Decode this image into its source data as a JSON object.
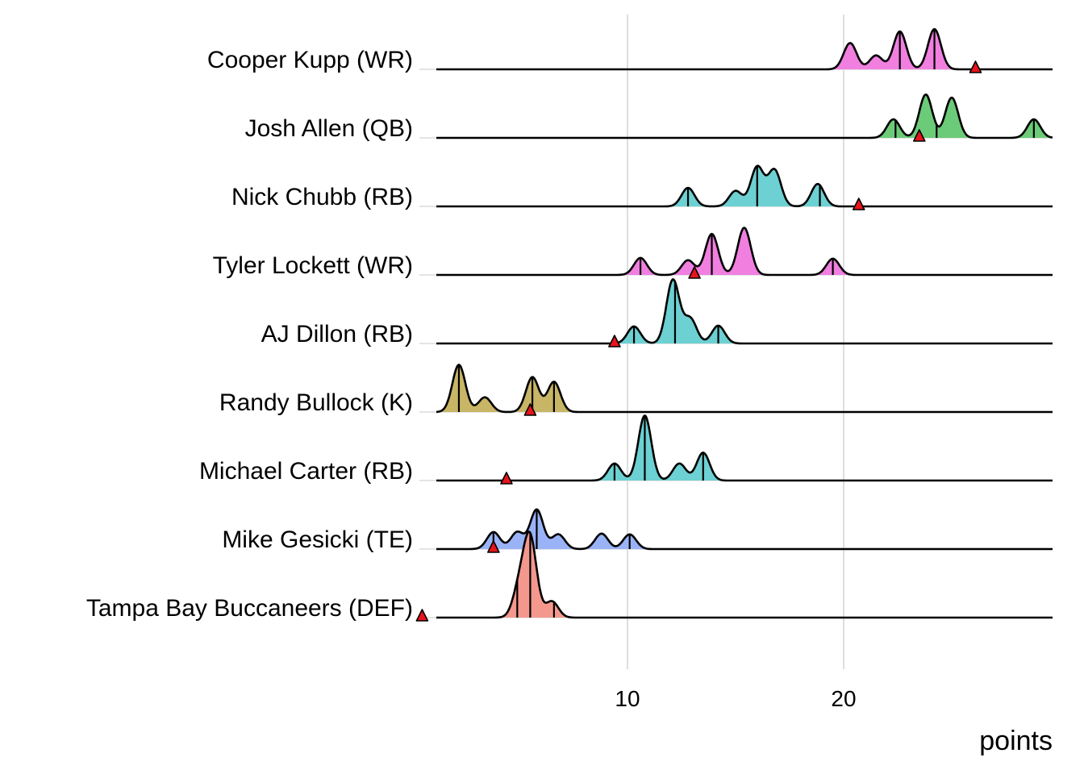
{
  "chart_data": {
    "type": "ridgeline",
    "xlabel": "points",
    "ylabel": "",
    "xlim": [
      0.5,
      29.5
    ],
    "x_ticks": [
      {
        "value": 10,
        "label": "10"
      },
      {
        "value": 20,
        "label": "20"
      }
    ],
    "grid": "vertical major lines",
    "legend": "none",
    "series": [
      {
        "name": "Cooper Kupp (WR)",
        "color": "#F07FE0",
        "peaks": [
          [
            20.3,
            0.34
          ],
          [
            21.5,
            0.18
          ],
          [
            22.6,
            0.49
          ],
          [
            24.2,
            0.52
          ]
        ],
        "quantiles": [
          22.6,
          24.2
        ],
        "marker": 26.1
      },
      {
        "name": "Josh Allen (QB)",
        "color": "#6CCB78",
        "peaks": [
          [
            22.3,
            0.24
          ],
          [
            23.8,
            0.56
          ],
          [
            25.0,
            0.52
          ],
          [
            28.8,
            0.24
          ]
        ],
        "quantiles": [
          22.4,
          24.3,
          28.8
        ],
        "marker": 23.5
      },
      {
        "name": "Nick Chubb (RB)",
        "color": "#6DD0D2",
        "peaks": [
          [
            12.8,
            0.24
          ],
          [
            15.0,
            0.2
          ],
          [
            16.0,
            0.51
          ],
          [
            16.8,
            0.47
          ],
          [
            18.8,
            0.29
          ]
        ],
        "quantiles": [
          12.8,
          16.0,
          18.9
        ],
        "marker": 20.7
      },
      {
        "name": "Tyler Lockett (WR)",
        "color": "#F07FE0",
        "peaks": [
          [
            10.6,
            0.22
          ],
          [
            12.8,
            0.19
          ],
          [
            13.9,
            0.53
          ],
          [
            15.4,
            0.61
          ],
          [
            19.5,
            0.21
          ]
        ],
        "quantiles": [
          10.6,
          13.9,
          19.5
        ],
        "marker": 13.1
      },
      {
        "name": "AJ Dillon (RB)",
        "color": "#6DD0D2",
        "peaks": [
          [
            10.3,
            0.22
          ],
          [
            12.1,
            0.82
          ],
          [
            12.9,
            0.32
          ],
          [
            14.2,
            0.23
          ]
        ],
        "quantiles": [
          10.3,
          12.2,
          14.2
        ],
        "marker": 9.4
      },
      {
        "name": "Randy Bullock (K)",
        "color": "#C8B566",
        "peaks": [
          [
            2.2,
            0.61
          ],
          [
            3.4,
            0.19
          ],
          [
            5.6,
            0.45
          ],
          [
            6.6,
            0.39
          ]
        ],
        "quantiles": [
          2.2,
          5.6,
          6.6
        ],
        "marker": 5.5
      },
      {
        "name": "Michael Carter (RB)",
        "color": "#6DD0D2",
        "peaks": [
          [
            9.4,
            0.22
          ],
          [
            10.8,
            0.84
          ],
          [
            12.4,
            0.22
          ],
          [
            13.5,
            0.36
          ]
        ],
        "quantiles": [
          9.4,
          10.8,
          13.5
        ],
        "marker": 4.4
      },
      {
        "name": "Mike Gesicki (TE)",
        "color": "#9AB3F7",
        "peaks": [
          [
            3.8,
            0.22
          ],
          [
            4.9,
            0.22
          ],
          [
            5.8,
            0.51
          ],
          [
            6.8,
            0.19
          ],
          [
            8.8,
            0.2
          ],
          [
            10.1,
            0.19
          ]
        ],
        "quantiles": [
          3.8,
          5.8,
          10.1
        ],
        "marker": 3.8
      },
      {
        "name": "Tampa Bay Buccaneers (DEF)",
        "color": "#F4988E",
        "peaks": [
          [
            5.0,
            0.38
          ],
          [
            5.5,
            1.0
          ],
          [
            6.5,
            0.21
          ]
        ],
        "quantiles": [
          4.9,
          5.5,
          6.6
        ],
        "marker": 0.5
      }
    ]
  }
}
